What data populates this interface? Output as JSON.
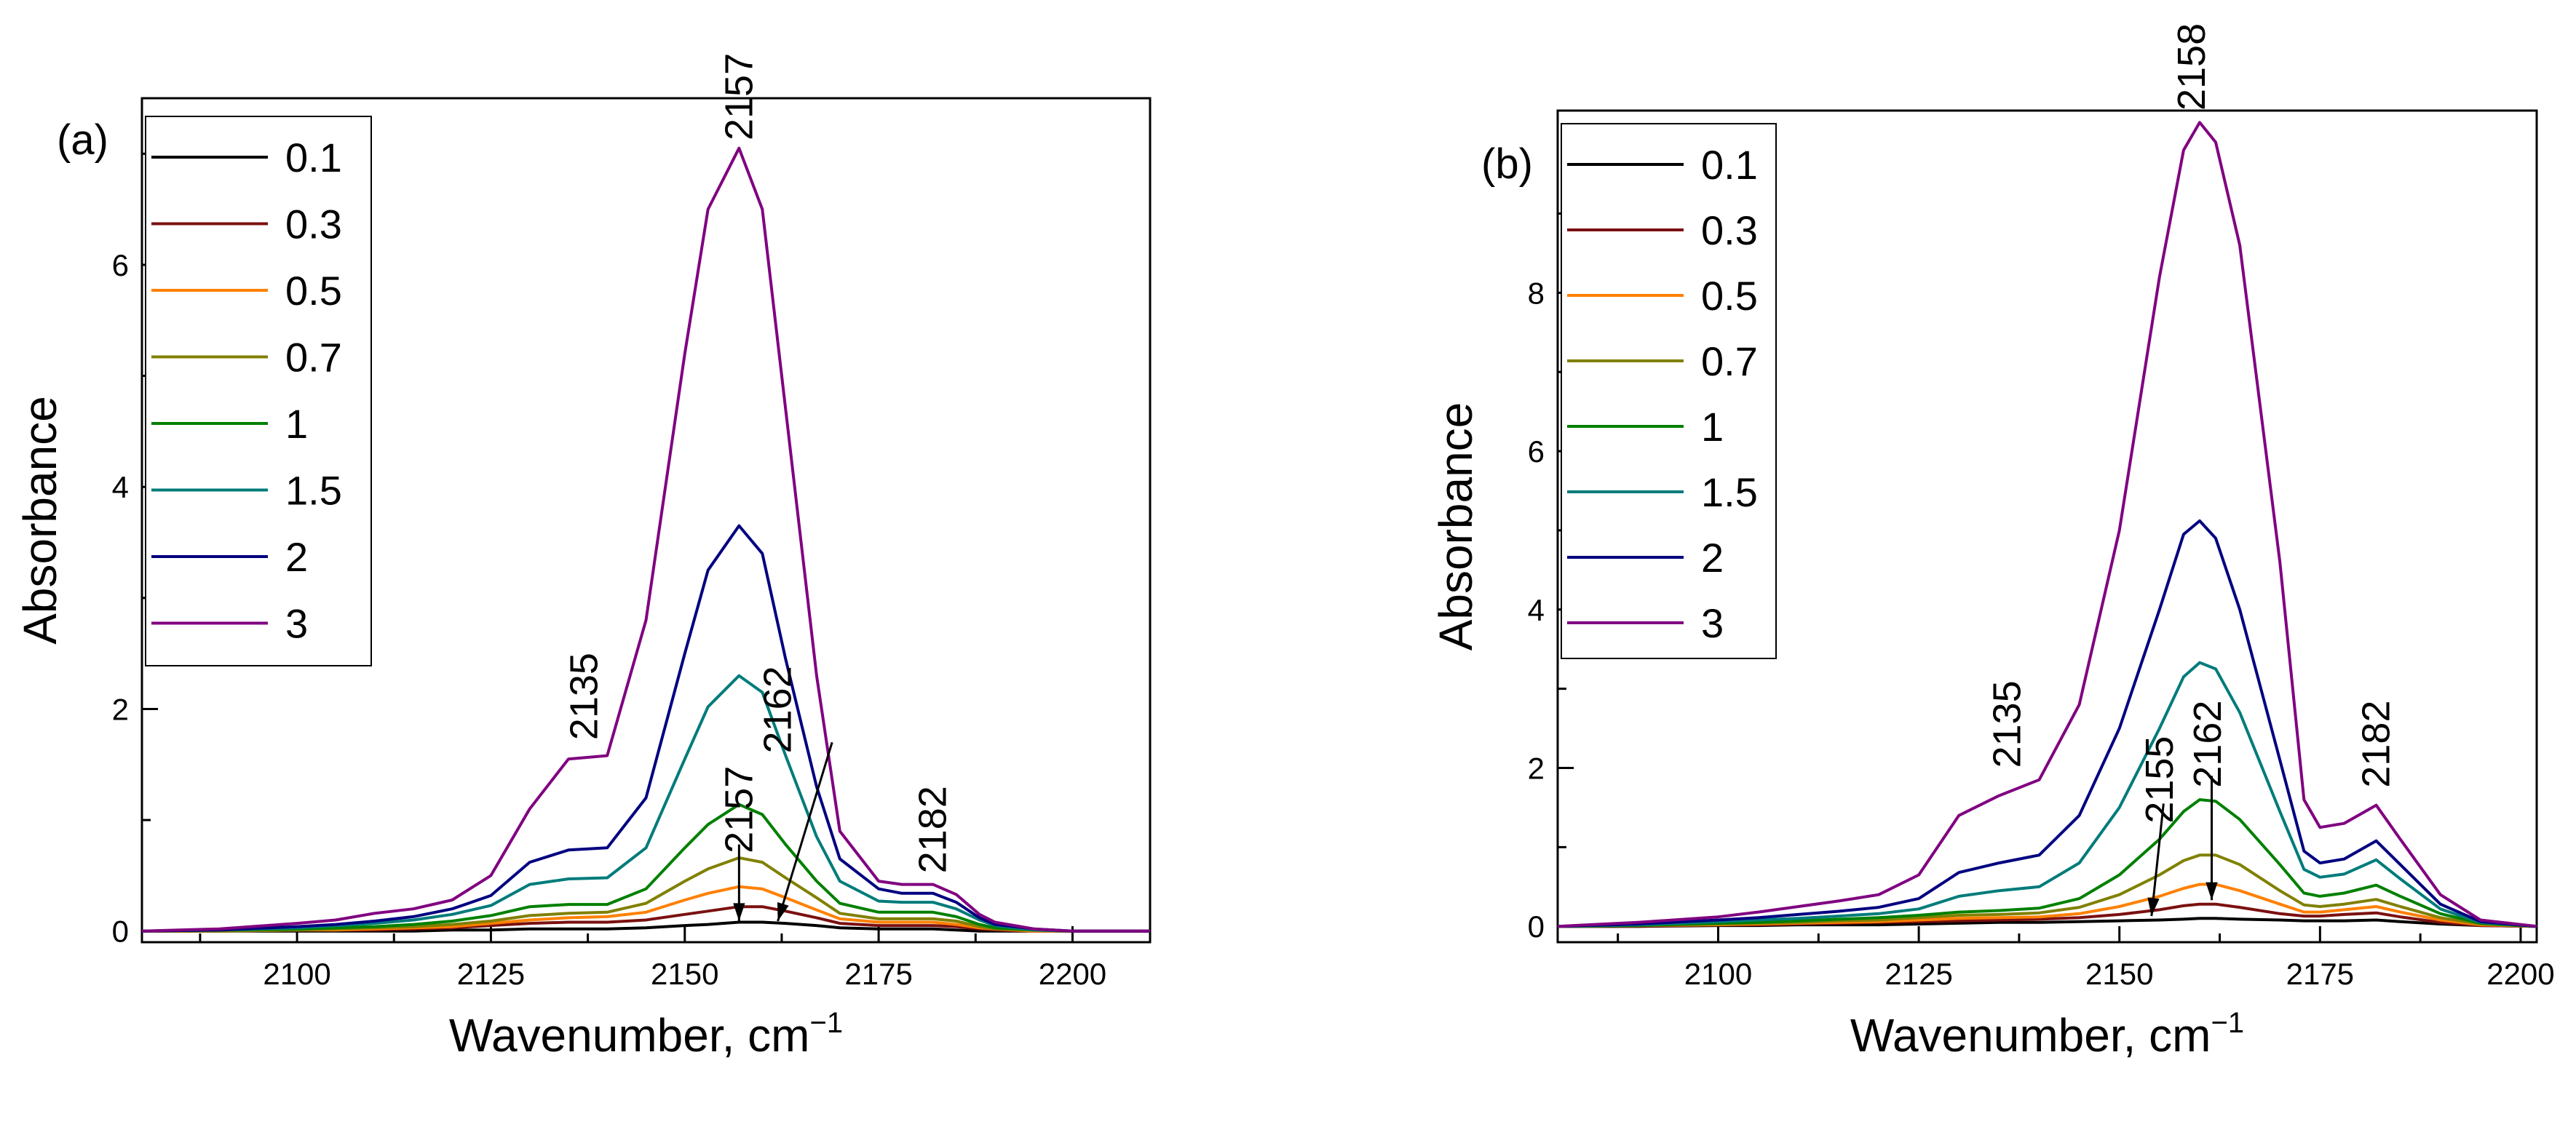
{
  "chart_data": [
    {
      "type": "line",
      "panel_label": "(a)",
      "xlabel": "Wavenumber, cm",
      "xlabel_sup": "−1",
      "ylabel": "Absorbance",
      "xlim": [
        2080,
        2210
      ],
      "ylim": [
        -0.1,
        7.5
      ],
      "xticks": [
        2100,
        2125,
        2150,
        2175,
        2200
      ],
      "xtick_labels": [
        "2100",
        "2125",
        "2150",
        "2175",
        "2200"
      ],
      "yticks": [
        0,
        2,
        4,
        6
      ],
      "ytick_labels": [
        "0",
        "2",
        "4",
        "6"
      ],
      "legend_position": "top-left",
      "x": [
        2080,
        2090,
        2100,
        2105,
        2110,
        2115,
        2120,
        2125,
        2130,
        2135,
        2140,
        2145,
        2150,
        2153,
        2157,
        2160,
        2163,
        2167,
        2170,
        2175,
        2178,
        2182,
        2185,
        2188,
        2190,
        2195,
        2200,
        2210
      ],
      "series": [
        {
          "name": "0.1",
          "color": "#000000",
          "values": [
            0,
            0,
            0,
            0,
            0,
            0,
            0.01,
            0.01,
            0.02,
            0.02,
            0.02,
            0.03,
            0.05,
            0.06,
            0.08,
            0.08,
            0.07,
            0.05,
            0.03,
            0.02,
            0.02,
            0.02,
            0.01,
            0,
            0,
            0,
            0,
            0
          ]
        },
        {
          "name": "0.3",
          "color": "#7B1010",
          "values": [
            0,
            0,
            0.01,
            0.01,
            0.01,
            0.02,
            0.03,
            0.05,
            0.07,
            0.08,
            0.08,
            0.1,
            0.15,
            0.18,
            0.22,
            0.22,
            0.18,
            0.12,
            0.07,
            0.05,
            0.05,
            0.05,
            0.04,
            0.02,
            0.01,
            0,
            0,
            0
          ]
        },
        {
          "name": "0.5",
          "color": "#FF8000",
          "values": [
            0,
            0,
            0.01,
            0.01,
            0.02,
            0.03,
            0.04,
            0.07,
            0.1,
            0.12,
            0.13,
            0.17,
            0.28,
            0.34,
            0.4,
            0.38,
            0.3,
            0.19,
            0.11,
            0.08,
            0.08,
            0.08,
            0.06,
            0.03,
            0.02,
            0,
            0,
            0
          ]
        },
        {
          "name": "0.7",
          "color": "#808000",
          "values": [
            0,
            0,
            0.01,
            0.02,
            0.03,
            0.04,
            0.06,
            0.09,
            0.14,
            0.16,
            0.17,
            0.25,
            0.45,
            0.56,
            0.66,
            0.62,
            0.48,
            0.3,
            0.16,
            0.11,
            0.11,
            0.11,
            0.09,
            0.04,
            0.02,
            0.01,
            0,
            0
          ]
        },
        {
          "name": "1",
          "color": "#008000",
          "values": [
            0,
            0.01,
            0.02,
            0.03,
            0.04,
            0.06,
            0.09,
            0.14,
            0.22,
            0.24,
            0.24,
            0.38,
            0.75,
            0.96,
            1.14,
            1.05,
            0.78,
            0.45,
            0.25,
            0.17,
            0.17,
            0.17,
            0.13,
            0.06,
            0.03,
            0.01,
            0,
            0
          ]
        },
        {
          "name": "1.5",
          "color": "#007B7B",
          "values": [
            0,
            0.01,
            0.03,
            0.05,
            0.07,
            0.1,
            0.15,
            0.23,
            0.42,
            0.47,
            0.48,
            0.75,
            1.55,
            2.02,
            2.3,
            2.15,
            1.58,
            0.85,
            0.45,
            0.27,
            0.26,
            0.26,
            0.2,
            0.1,
            0.05,
            0.01,
            0,
            0
          ]
        },
        {
          "name": "2",
          "color": "#000080",
          "values": [
            0,
            0.01,
            0.04,
            0.06,
            0.09,
            0.13,
            0.2,
            0.32,
            0.62,
            0.73,
            0.75,
            1.2,
            2.5,
            3.25,
            3.65,
            3.4,
            2.45,
            1.3,
            0.65,
            0.38,
            0.34,
            0.34,
            0.26,
            0.12,
            0.06,
            0.02,
            0,
            0
          ]
        },
        {
          "name": "3",
          "color": "#800080",
          "values": [
            0,
            0.02,
            0.07,
            0.1,
            0.16,
            0.2,
            0.28,
            0.5,
            1.1,
            1.55,
            1.58,
            2.8,
            5.2,
            6.5,
            7.05,
            6.5,
            4.7,
            2.3,
            0.9,
            0.45,
            0.42,
            0.42,
            0.33,
            0.15,
            0.08,
            0.02,
            0,
            0
          ]
        }
      ],
      "annotations": [
        {
          "text": "2157",
          "x": 2157,
          "y": 7.12
        },
        {
          "text": "2135",
          "x": 2137,
          "y": 1.72
        },
        {
          "text": "2157",
          "x": 2157,
          "y": 0.7
        },
        {
          "text": "2162",
          "x": 2162,
          "y": 1.6
        },
        {
          "text": "2182",
          "x": 2182,
          "y": 0.52
        }
      ],
      "arrows": [
        {
          "from": [
            2157,
            0.78
          ],
          "to": [
            2157,
            0.09
          ]
        },
        {
          "from": [
            2169,
            1.7
          ],
          "to": [
            2162,
            0.09
          ]
        }
      ]
    },
    {
      "type": "line",
      "panel_label": "(b)",
      "xlabel": "Wavenumber, cm",
      "xlabel_sup": "−1",
      "ylabel": "Absorbance",
      "xlim": [
        2080,
        2202
      ],
      "ylim": [
        -0.2,
        10.3
      ],
      "xticks": [
        2100,
        2125,
        2150,
        2175,
        2200
      ],
      "xtick_labels": [
        "2100",
        "2125",
        "2150",
        "2175",
        "2200"
      ],
      "yticks": [
        0,
        2,
        4,
        6,
        8
      ],
      "ytick_labels": [
        "0",
        "2",
        "4",
        "6",
        "8"
      ],
      "legend_position": "top-left",
      "x": [
        2080,
        2090,
        2100,
        2105,
        2110,
        2115,
        2120,
        2125,
        2130,
        2135,
        2140,
        2145,
        2150,
        2155,
        2158,
        2160,
        2162,
        2165,
        2170,
        2173,
        2175,
        2178,
        2182,
        2185,
        2190,
        2195,
        2202
      ],
      "series": [
        {
          "name": "0.1",
          "color": "#000000",
          "values": [
            0,
            0,
            0.01,
            0.01,
            0.02,
            0.02,
            0.02,
            0.03,
            0.04,
            0.05,
            0.05,
            0.06,
            0.07,
            0.08,
            0.09,
            0.1,
            0.1,
            0.09,
            0.08,
            0.07,
            0.07,
            0.07,
            0.08,
            0.06,
            0.03,
            0.01,
            0
          ]
        },
        {
          "name": "0.3",
          "color": "#7B1010",
          "values": [
            0,
            0,
            0.02,
            0.02,
            0.03,
            0.04,
            0.05,
            0.06,
            0.07,
            0.08,
            0.09,
            0.11,
            0.15,
            0.21,
            0.26,
            0.28,
            0.28,
            0.24,
            0.16,
            0.13,
            0.13,
            0.15,
            0.17,
            0.12,
            0.05,
            0.01,
            0
          ]
        },
        {
          "name": "0.5",
          "color": "#FF8000",
          "values": [
            0,
            0.01,
            0.02,
            0.03,
            0.04,
            0.05,
            0.06,
            0.08,
            0.1,
            0.11,
            0.12,
            0.16,
            0.25,
            0.38,
            0.48,
            0.53,
            0.53,
            0.45,
            0.28,
            0.18,
            0.18,
            0.21,
            0.25,
            0.18,
            0.08,
            0.02,
            0
          ]
        },
        {
          "name": "0.7",
          "color": "#808000",
          "values": [
            0,
            0.01,
            0.03,
            0.04,
            0.05,
            0.07,
            0.08,
            0.11,
            0.14,
            0.15,
            0.17,
            0.24,
            0.4,
            0.65,
            0.83,
            0.9,
            0.9,
            0.78,
            0.45,
            0.27,
            0.25,
            0.28,
            0.34,
            0.25,
            0.11,
            0.03,
            0
          ]
        },
        {
          "name": "1",
          "color": "#008000",
          "values": [
            0,
            0.01,
            0.04,
            0.05,
            0.07,
            0.09,
            0.11,
            0.14,
            0.18,
            0.2,
            0.23,
            0.35,
            0.65,
            1.1,
            1.45,
            1.6,
            1.58,
            1.35,
            0.78,
            0.42,
            0.38,
            0.42,
            0.52,
            0.38,
            0.16,
            0.04,
            0
          ]
        },
        {
          "name": "1.5",
          "color": "#007B7B",
          "values": [
            0,
            0.02,
            0.06,
            0.08,
            0.1,
            0.13,
            0.16,
            0.22,
            0.38,
            0.45,
            0.5,
            0.8,
            1.5,
            2.5,
            3.15,
            3.33,
            3.25,
            2.7,
            1.45,
            0.72,
            0.62,
            0.66,
            0.84,
            0.6,
            0.22,
            0.05,
            0
          ]
        },
        {
          "name": "2",
          "color": "#000080",
          "values": [
            0,
            0.03,
            0.08,
            0.11,
            0.15,
            0.19,
            0.24,
            0.35,
            0.68,
            0.8,
            0.9,
            1.4,
            2.5,
            4.0,
            4.95,
            5.12,
            4.9,
            4.0,
            2.1,
            0.95,
            0.8,
            0.85,
            1.08,
            0.78,
            0.28,
            0.06,
            0
          ]
        },
        {
          "name": "3",
          "color": "#800080",
          "values": [
            0,
            0.05,
            0.12,
            0.18,
            0.25,
            0.32,
            0.4,
            0.65,
            1.4,
            1.65,
            1.85,
            2.8,
            5.0,
            8.2,
            9.8,
            10.15,
            9.9,
            8.6,
            4.6,
            1.6,
            1.25,
            1.3,
            1.53,
            1.1,
            0.4,
            0.08,
            0
          ]
        }
      ],
      "annotations": [
        {
          "text": "2158",
          "x": 2159,
          "y": 10.3
        },
        {
          "text": "2135",
          "x": 2136,
          "y": 2.0
        },
        {
          "text": "2155",
          "x": 2155,
          "y": 1.3
        },
        {
          "text": "2162",
          "x": 2161,
          "y": 1.75
        },
        {
          "text": "2182",
          "x": 2182,
          "y": 1.75
        }
      ],
      "arrows": [
        {
          "from": [
            2155.5,
            1.55
          ],
          "to": [
            2154,
            0.13
          ]
        },
        {
          "from": [
            2161.5,
            1.9
          ],
          "to": [
            2161.5,
            0.33
          ]
        }
      ]
    }
  ]
}
